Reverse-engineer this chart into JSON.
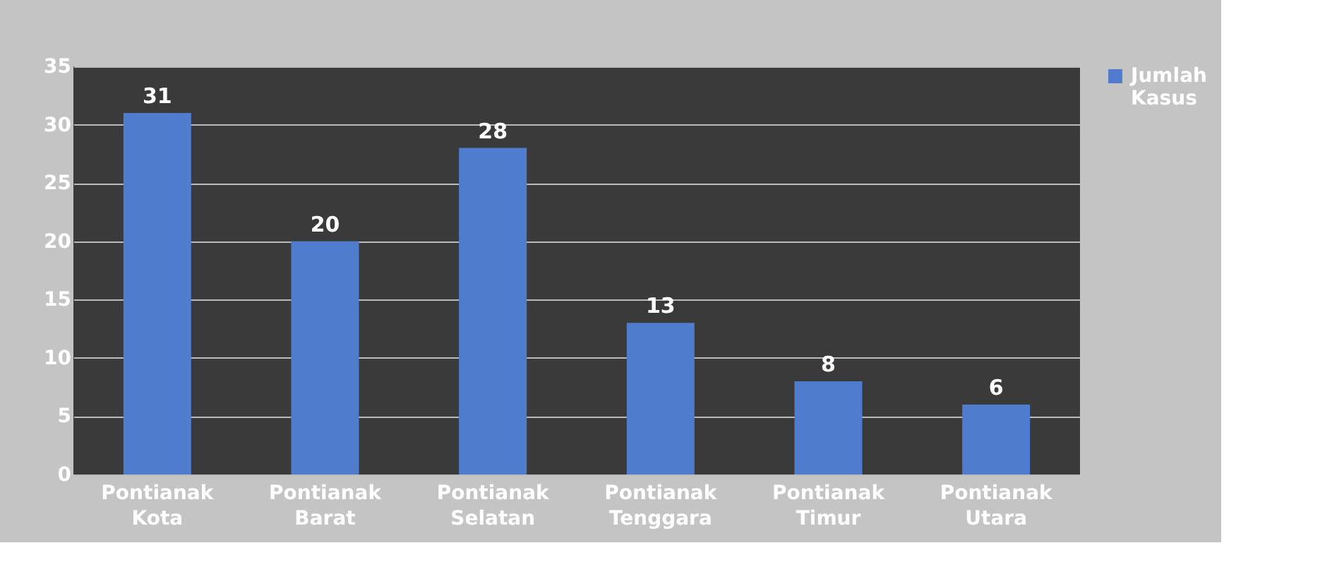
{
  "chart_data": {
    "type": "bar",
    "categories": [
      "Pontianak Kota",
      "Pontianak Barat",
      "Pontianak Selatan",
      "Pontianak Tenggara",
      "Pontianak Timur",
      "Pontianak Utara"
    ],
    "series": [
      {
        "name": "Jumlah Kasus",
        "color": "#4f7ccc",
        "values": [
          31,
          20,
          28,
          13,
          8,
          6
        ]
      }
    ],
    "ylim": [
      0,
      35
    ],
    "yticks": [
      0,
      5,
      10,
      15,
      20,
      25,
      30,
      35
    ],
    "grid": "y",
    "data_labels": true,
    "legend": "right"
  }
}
